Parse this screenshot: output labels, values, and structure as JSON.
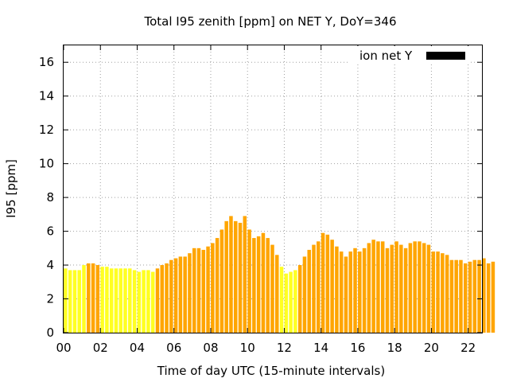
{
  "chart_data": {
    "type": "bar",
    "title": "Total I95 zenith [ppm] on NET Y, DoY=346",
    "xlabel": "Time of day UTC (15-minute intervals)",
    "ylabel": "I95 [ppm]",
    "xlim": [
      0,
      22.75
    ],
    "ylim": [
      0,
      17
    ],
    "grid": true,
    "legend_position": "top-right",
    "x_ticks": [
      "00",
      "02",
      "04",
      "06",
      "08",
      "10",
      "12",
      "14",
      "16",
      "18",
      "20",
      "22"
    ],
    "y_ticks": [
      "0",
      "2",
      "4",
      "6",
      "8",
      "10",
      "12",
      "14",
      "16"
    ],
    "interval_hours": 0.25,
    "colors": {
      "low": "#ffff22",
      "high": "#ffa500",
      "legend_swatch": "#000000"
    },
    "series": [
      {
        "name": "ion net Y",
        "values": [
          3.8,
          3.7,
          3.7,
          3.7,
          4.0,
          4.1,
          4.1,
          4.0,
          3.9,
          3.9,
          3.8,
          3.8,
          3.8,
          3.8,
          3.8,
          3.7,
          3.6,
          3.7,
          3.7,
          3.6,
          3.8,
          4.0,
          4.1,
          4.3,
          4.4,
          4.5,
          4.5,
          4.7,
          5.0,
          5.0,
          4.9,
          5.1,
          5.3,
          5.6,
          6.1,
          6.6,
          6.9,
          6.6,
          6.5,
          6.9,
          6.1,
          5.6,
          5.7,
          5.9,
          5.6,
          5.2,
          4.6,
          3.9,
          3.5,
          3.6,
          3.7,
          4.0,
          4.5,
          4.9,
          5.2,
          5.4,
          5.9,
          5.8,
          5.5,
          5.1,
          4.8,
          4.5,
          4.8,
          5.0,
          4.8,
          5.0,
          5.3,
          5.5,
          5.4,
          5.4,
          5.0,
          5.2,
          5.4,
          5.2,
          5.0,
          5.3,
          5.4,
          5.4,
          5.3,
          5.2,
          4.8,
          4.8,
          4.7,
          4.6,
          4.3,
          4.3,
          4.3,
          4.1,
          4.2,
          4.3,
          4.3,
          4.4,
          4.1,
          4.2
        ],
        "color_class": [
          "low",
          "low",
          "low",
          "low",
          "low",
          "high",
          "high",
          "high",
          "low",
          "low",
          "low",
          "low",
          "low",
          "low",
          "low",
          "low",
          "low",
          "low",
          "low",
          "low",
          "high",
          "high",
          "high",
          "high",
          "high",
          "high",
          "high",
          "high",
          "high",
          "high",
          "high",
          "high",
          "high",
          "high",
          "high",
          "high",
          "high",
          "high",
          "high",
          "high",
          "high",
          "high",
          "high",
          "high",
          "high",
          "high",
          "high",
          "low",
          "low",
          "low",
          "low",
          "high",
          "high",
          "high",
          "high",
          "high",
          "high",
          "high",
          "high",
          "high",
          "high",
          "high",
          "high",
          "high",
          "high",
          "high",
          "high",
          "high",
          "high",
          "high",
          "high",
          "high",
          "high",
          "high",
          "high",
          "high",
          "high",
          "high",
          "high",
          "high",
          "high",
          "high",
          "high",
          "high",
          "high",
          "high",
          "high",
          "high",
          "high",
          "high",
          "high",
          "high",
          "high",
          "high"
        ]
      }
    ]
  }
}
